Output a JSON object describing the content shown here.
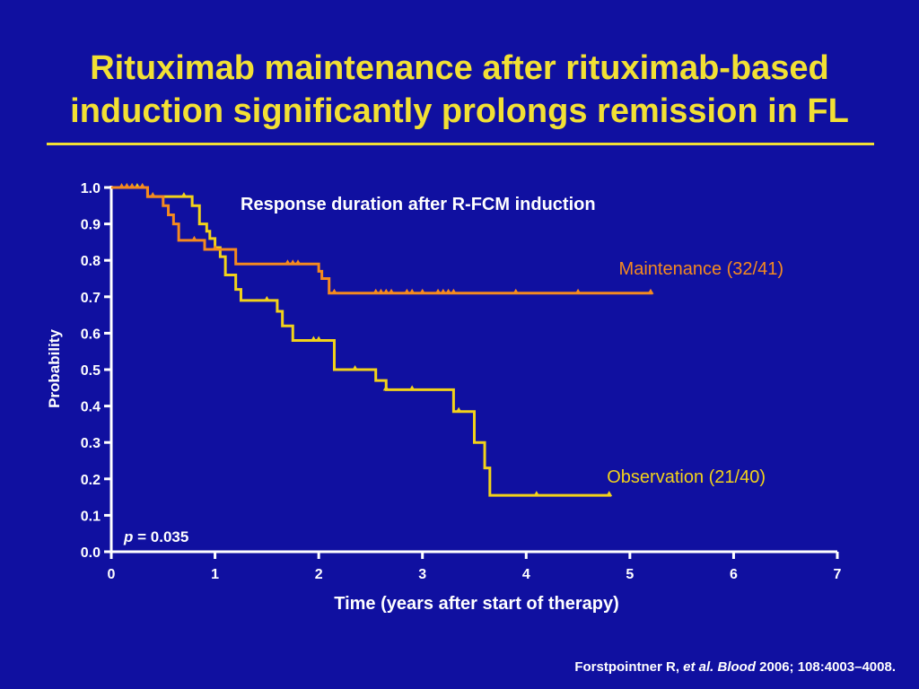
{
  "slide": {
    "title_line1": "Rituximab maintenance after rituximab-based",
    "title_line2": "induction significantly prolongs remission in FL"
  },
  "citation": {
    "author": "Forstpointner R, ",
    "etal": "et al.",
    "journal": "Blood",
    "rest": " 2006; 108:4003–4008."
  },
  "colors": {
    "background": "#1010a0",
    "title": "#f2e034",
    "maintenance": "#f58a1f",
    "observation": "#f2d21a",
    "axis": "#ffffff"
  },
  "chart_data": {
    "type": "line",
    "subtitle": "Response duration after R-FCM induction",
    "xlabel": "Time (years after start of therapy)",
    "ylabel": "Probability",
    "xlim": [
      0,
      7
    ],
    "ylim": [
      0,
      1
    ],
    "x_ticks": [
      "0",
      "1",
      "2",
      "3",
      "4",
      "5",
      "6",
      "7"
    ],
    "y_ticks": [
      "0.0",
      "0.1",
      "0.2",
      "0.3",
      "0.4",
      "0.5",
      "0.6",
      "0.7",
      "0.8",
      "0.9",
      "1.0"
    ],
    "grid": false,
    "annotation_p_label": "p",
    "annotation_p_value": " = 0.035",
    "series": [
      {
        "name": "Maintenance (32/41)",
        "color": "#f58a1f",
        "steps": [
          [
            0,
            1.0
          ],
          [
            0.35,
            0.975
          ],
          [
            0.5,
            0.95
          ],
          [
            0.55,
            0.925
          ],
          [
            0.6,
            0.9
          ],
          [
            0.65,
            0.855
          ],
          [
            0.9,
            0.83
          ],
          [
            1.2,
            0.79
          ],
          [
            2.0,
            0.77
          ],
          [
            2.03,
            0.75
          ],
          [
            2.1,
            0.71
          ],
          [
            5.22,
            0.71
          ]
        ],
        "censor_x": [
          0.1,
          0.15,
          0.2,
          0.3,
          0.4,
          0.8,
          1.0,
          1.7,
          1.75,
          1.8,
          2.15,
          2.55,
          2.6,
          2.65,
          2.7,
          2.85,
          2.9,
          3.0,
          3.15,
          3.2,
          3.25,
          3.3,
          3.9,
          4.5,
          5.2
        ]
      },
      {
        "name": "Observation (21/40)",
        "color": "#f2d21a",
        "steps": [
          [
            0,
            1.0
          ],
          [
            0.35,
            0.975
          ],
          [
            0.78,
            0.95
          ],
          [
            0.85,
            0.9
          ],
          [
            0.92,
            0.88
          ],
          [
            0.95,
            0.86
          ],
          [
            1.0,
            0.835
          ],
          [
            1.05,
            0.81
          ],
          [
            1.1,
            0.76
          ],
          [
            1.2,
            0.72
          ],
          [
            1.25,
            0.69
          ],
          [
            1.6,
            0.66
          ],
          [
            1.65,
            0.62
          ],
          [
            1.75,
            0.58
          ],
          [
            2.15,
            0.5
          ],
          [
            2.55,
            0.47
          ],
          [
            2.65,
            0.445
          ],
          [
            3.3,
            0.385
          ],
          [
            3.5,
            0.3
          ],
          [
            3.6,
            0.23
          ],
          [
            3.65,
            0.155
          ],
          [
            4.82,
            0.155
          ]
        ],
        "censor_x": [
          0.15,
          0.2,
          0.25,
          0.3,
          0.4,
          0.7,
          1.5,
          1.95,
          2.0,
          2.35,
          2.65,
          2.9,
          3.35,
          4.1,
          4.8
        ]
      }
    ],
    "series_label_positions": [
      "right-middle",
      "right-bottom"
    ]
  }
}
